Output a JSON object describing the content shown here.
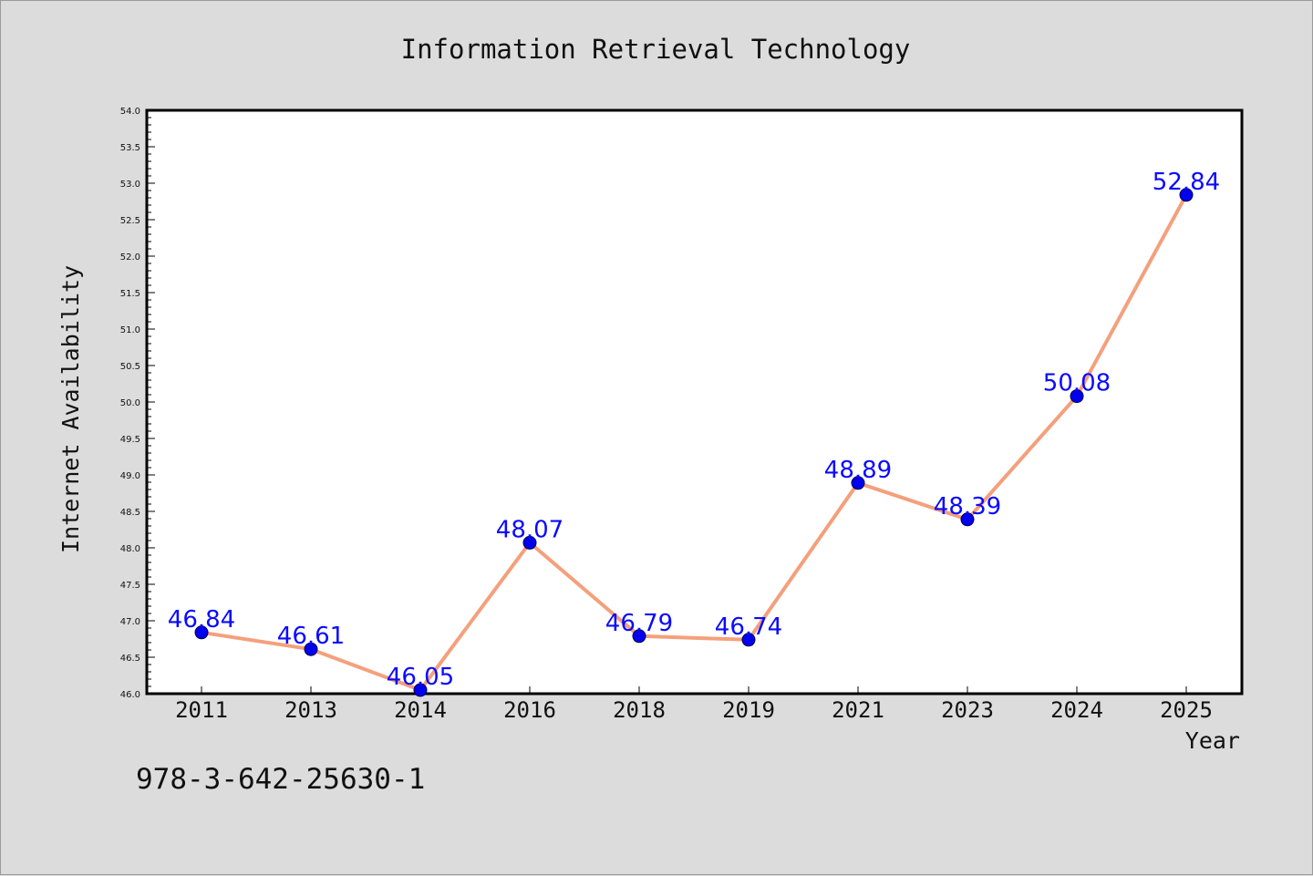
{
  "chart_data": {
    "type": "line",
    "title": "Information Retrieval Technology",
    "xlabel": "Year",
    "ylabel": "Internet Availability",
    "categories": [
      "2011",
      "2013",
      "2014",
      "2016",
      "2018",
      "2019",
      "2021",
      "2023",
      "2024",
      "2025"
    ],
    "series": [
      {
        "values": [
          46.84,
          46.61,
          46.05,
          48.07,
          46.79,
          46.74,
          48.89,
          48.39,
          50.08,
          52.84
        ],
        "labels": [
          "46.84",
          "46.61",
          "46.05",
          "48.07",
          "46.79",
          "46.74",
          "48.89",
          "48.39",
          "50.08",
          "52.84"
        ],
        "line_color": "#f4a07c",
        "marker_color": "#0000ee"
      }
    ],
    "ylim": [
      46.0,
      54.0
    ],
    "yticks": [
      "46.0",
      "46.5",
      "47.0",
      "47.5",
      "48.0",
      "48.5",
      "49.0",
      "49.5",
      "50.0",
      "50.5",
      "51.0",
      "51.5",
      "52.0",
      "52.5",
      "53.0",
      "53.5",
      "54.0"
    ],
    "grid": false,
    "legend": "none",
    "label_color": "#0000ff",
    "plot_background": "#ffffff",
    "page_background": "#dcdcdc"
  },
  "footnote": "978-3-642-25630-1"
}
